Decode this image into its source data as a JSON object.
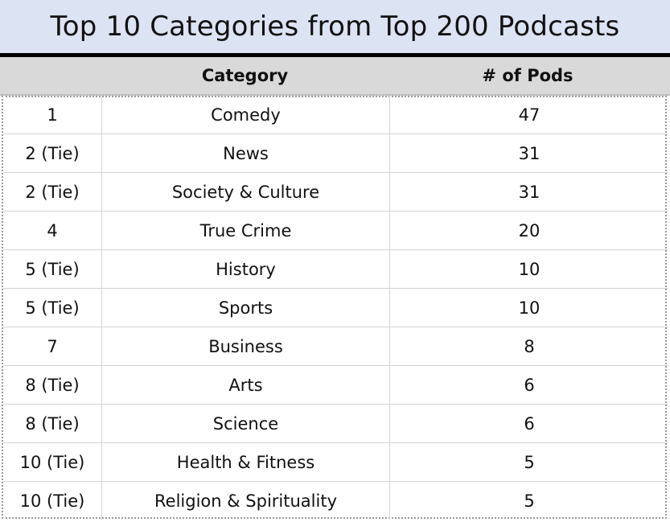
{
  "chart_data": {
    "type": "table",
    "title": "Top 10 Categories from Top 200 Podcasts",
    "columns": [
      "",
      "Category",
      "# of Pods"
    ],
    "rows": [
      {
        "rank": "1",
        "category": "Comedy",
        "pods": "47"
      },
      {
        "rank": "2 (Tie)",
        "category": "News",
        "pods": "31"
      },
      {
        "rank": "2 (Tie)",
        "category": "Society & Culture",
        "pods": "31"
      },
      {
        "rank": "4",
        "category": "True Crime",
        "pods": "20"
      },
      {
        "rank": "5 (Tie)",
        "category": "History",
        "pods": "10"
      },
      {
        "rank": "5 (Tie)",
        "category": "Sports",
        "pods": "10"
      },
      {
        "rank": "7",
        "category": "Business",
        "pods": "8"
      },
      {
        "rank": "8 (Tie)",
        "category": "Arts",
        "pods": "6"
      },
      {
        "rank": "8 (Tie)",
        "category": "Science",
        "pods": "6"
      },
      {
        "rank": "10 (Tie)",
        "category": "Health & Fitness",
        "pods": "5"
      },
      {
        "rank": "10 (Tie)",
        "category": "Religion & Spirituality",
        "pods": "5"
      }
    ],
    "colors": {
      "title_background": "#dce3f3",
      "header_background": "#d9d9d9",
      "rule": "#000000",
      "grid": "#d4d4d4"
    }
  }
}
